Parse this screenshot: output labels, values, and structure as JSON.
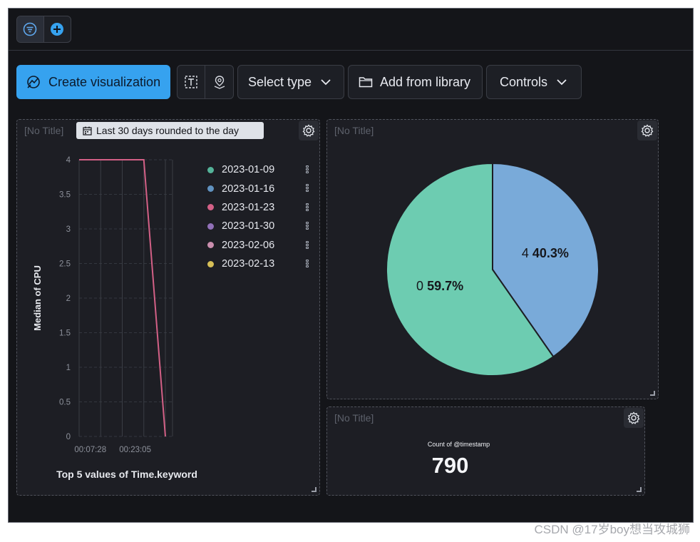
{
  "topbar": {
    "filter_icon": "filter-icon",
    "add_icon": "plus-circle-icon"
  },
  "toolbar": {
    "create_label": "Create visualization",
    "select_type_label": "Select type",
    "add_library_label": "Add from library",
    "controls_label": "Controls",
    "accent": "#36a2ef"
  },
  "panels": {
    "line": {
      "title": "[No Title]",
      "time_badge": "Last 30 days rounded to the day",
      "legend": [
        {
          "label": "2023-01-09",
          "color": "#54b399"
        },
        {
          "label": "2023-01-16",
          "color": "#6092c0"
        },
        {
          "label": "2023-01-23",
          "color": "#d36086"
        },
        {
          "label": "2023-01-30",
          "color": "#9170b8"
        },
        {
          "label": "2023-02-06",
          "color": "#ca8eae"
        },
        {
          "label": "2023-02-13",
          "color": "#d6bf57"
        }
      ]
    },
    "pie": {
      "title": "[No Title]"
    },
    "metric": {
      "title": "[No Title]",
      "label": "Count of @timestamp",
      "value": "790"
    }
  },
  "chart_data": [
    {
      "type": "line",
      "title": "",
      "xlabel": "Top 5 values of Time.keyword",
      "ylabel": "Median of CPU",
      "x_tick_labels": [
        "00:07:28",
        "00:23:05"
      ],
      "y_ticks": [
        "0",
        "0.5",
        "1",
        "1.5",
        "2",
        "2.5",
        "3",
        "3.5",
        "4"
      ],
      "ylim": [
        0,
        4
      ],
      "grid": true,
      "legend_position": "top-right",
      "series": [
        {
          "name": "2023-01-23",
          "color": "#d36086",
          "points": [
            [
              0,
              4
            ],
            [
              1,
              4
            ],
            [
              2,
              4
            ],
            [
              3,
              4
            ],
            [
              4,
              0
            ]
          ]
        }
      ]
    },
    {
      "type": "pie",
      "slices": [
        {
          "label": "4",
          "value": 40.3,
          "pct_text": "40.3%",
          "color": "#79aad9"
        },
        {
          "label": "0",
          "value": 59.7,
          "pct_text": "59.7%",
          "color": "#6dccb1"
        }
      ]
    }
  ],
  "watermark": "CSDN @17岁boy想当攻城狮"
}
